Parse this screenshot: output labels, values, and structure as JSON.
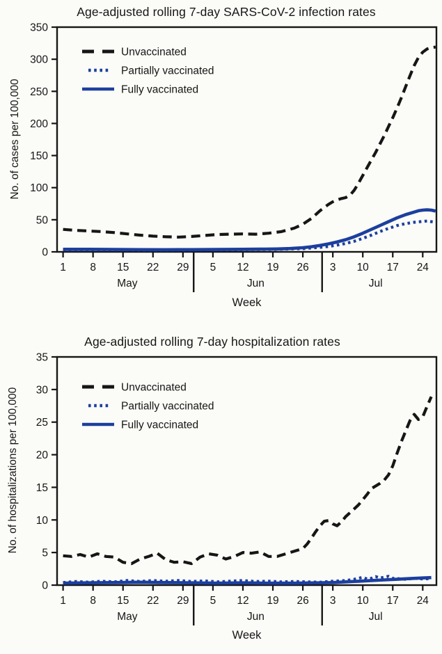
{
  "figure": {
    "background": "#fbfbf7",
    "accent_blue": "#1c3f9e",
    "line_black": "#161616"
  },
  "chart_data": [
    {
      "type": "line",
      "title": "Age-adjusted rolling 7-day SARS-CoV-2 infection rates",
      "xlabel": "Week",
      "ylabel": "No. of cases per 100,000",
      "ylim": [
        0,
        350
      ],
      "yticks": [
        0,
        50,
        100,
        150,
        200,
        250,
        300,
        350
      ],
      "grid": false,
      "legend_position": "upper-left-inside",
      "x_unit": "days since May 1",
      "xticks": {
        "days": [
          0,
          7,
          14,
          21,
          28,
          35,
          42,
          49,
          56,
          63,
          70,
          77,
          84
        ],
        "labels": [
          "1",
          "8",
          "15",
          "22",
          "29",
          "5",
          "12",
          "19",
          "26",
          "3",
          "10",
          "17",
          "24"
        ]
      },
      "months": [
        {
          "label": "May",
          "center_day": 15
        },
        {
          "label": "Jun",
          "center_day": 45
        },
        {
          "label": "Jul",
          "center_day": 73
        }
      ],
      "month_separator_days": [
        30.5,
        60.5
      ],
      "series": [
        {
          "name": "Unvaccinated",
          "style": "dashed",
          "color": "#161616",
          "points": [
            [
              0,
              35
            ],
            [
              3,
              33.5
            ],
            [
              6,
              32.5
            ],
            [
              9,
              31.5
            ],
            [
              12,
              30
            ],
            [
              15,
              28
            ],
            [
              18,
              26
            ],
            [
              21,
              24.5
            ],
            [
              24,
              23.5
            ],
            [
              27,
              23
            ],
            [
              30,
              24
            ],
            [
              33,
              25.5
            ],
            [
              36,
              27
            ],
            [
              39,
              27.5
            ],
            [
              42,
              28
            ],
            [
              45,
              27.5
            ],
            [
              48,
              29
            ],
            [
              51,
              31.5
            ],
            [
              54,
              37
            ],
            [
              56,
              43
            ],
            [
              58,
              52
            ],
            [
              60,
              64
            ],
            [
              62,
              74
            ],
            [
              63,
              78
            ],
            [
              64,
              81
            ],
            [
              65,
              83
            ],
            [
              66,
              84.5
            ],
            [
              67,
              88
            ],
            [
              68,
              96
            ],
            [
              69,
              107
            ],
            [
              70,
              119
            ],
            [
              71,
              131
            ],
            [
              72,
              143
            ],
            [
              73,
              155
            ],
            [
              74,
              168
            ],
            [
              75,
              181
            ],
            [
              76,
              195
            ],
            [
              77,
              209
            ],
            [
              78,
              224
            ],
            [
              79,
              240
            ],
            [
              80,
              257
            ],
            [
              81,
              274
            ],
            [
              82,
              290
            ],
            [
              83,
              303
            ],
            [
              84,
              311
            ],
            [
              85,
              316
            ],
            [
              86,
              318
            ],
            [
              87,
              319
            ]
          ]
        },
        {
          "name": "Partially vaccinated",
          "style": "dotted",
          "color": "#1c3f9e",
          "points": [
            [
              0,
              3
            ],
            [
              6,
              3
            ],
            [
              12,
              3
            ],
            [
              18,
              2.8
            ],
            [
              24,
              2.8
            ],
            [
              30,
              3
            ],
            [
              36,
              3.2
            ],
            [
              42,
              3.5
            ],
            [
              46,
              3.7
            ],
            [
              50,
              4
            ],
            [
              53,
              4.5
            ],
            [
              56,
              5
            ],
            [
              58,
              6
            ],
            [
              60,
              7
            ],
            [
              62,
              8.5
            ],
            [
              64,
              10.5
            ],
            [
              66,
              13
            ],
            [
              68,
              16.5
            ],
            [
              70,
              21
            ],
            [
              72,
              26
            ],
            [
              74,
              31.5
            ],
            [
              76,
              36.5
            ],
            [
              78,
              41
            ],
            [
              80,
              44
            ],
            [
              82,
              46
            ],
            [
              84,
              47.5
            ],
            [
              85,
              48
            ],
            [
              86,
              47
            ],
            [
              87,
              46
            ]
          ]
        },
        {
          "name": "Fully vaccinated",
          "style": "solid",
          "color": "#1c3f9e",
          "points": [
            [
              0,
              4
            ],
            [
              6,
              4
            ],
            [
              12,
              3.8
            ],
            [
              18,
              3.5
            ],
            [
              24,
              3.4
            ],
            [
              30,
              3.5
            ],
            [
              36,
              3.7
            ],
            [
              42,
              4
            ],
            [
              46,
              4.2
            ],
            [
              50,
              4.6
            ],
            [
              53,
              5.2
            ],
            [
              56,
              6.5
            ],
            [
              58,
              8
            ],
            [
              60,
              10
            ],
            [
              62,
              12.5
            ],
            [
              64,
              15.5
            ],
            [
              66,
              19
            ],
            [
              68,
              23.5
            ],
            [
              70,
              29
            ],
            [
              72,
              35
            ],
            [
              74,
              41
            ],
            [
              76,
              47
            ],
            [
              78,
              53
            ],
            [
              80,
              58
            ],
            [
              82,
              62
            ],
            [
              83,
              64
            ],
            [
              84,
              65
            ],
            [
              85,
              65.5
            ],
            [
              86,
              65
            ],
            [
              87,
              63.5
            ]
          ]
        }
      ]
    },
    {
      "type": "line",
      "title": "Age-adjusted rolling 7-day hospitalization rates",
      "xlabel": "Week",
      "ylabel": "No. of hospitalizations per 100,000",
      "ylim": [
        0,
        35
      ],
      "yticks": [
        0,
        5,
        10,
        15,
        20,
        25,
        30,
        35
      ],
      "grid": false,
      "legend_position": "upper-left-inside",
      "x_unit": "days since May 1",
      "xticks": {
        "days": [
          0,
          7,
          14,
          21,
          28,
          35,
          42,
          49,
          56,
          63,
          70,
          77,
          84
        ],
        "labels": [
          "1",
          "8",
          "15",
          "22",
          "29",
          "5",
          "12",
          "19",
          "26",
          "3",
          "10",
          "17",
          "24"
        ]
      },
      "months": [
        {
          "label": "May",
          "center_day": 15
        },
        {
          "label": "Jun",
          "center_day": 45
        },
        {
          "label": "Jul",
          "center_day": 73
        }
      ],
      "month_separator_days": [
        30.5,
        60.5
      ],
      "series": [
        {
          "name": "Unvaccinated",
          "style": "dashed",
          "color": "#161616",
          "points": [
            [
              0,
              4.5
            ],
            [
              2,
              4.4
            ],
            [
              4,
              4.7
            ],
            [
              6,
              4.3
            ],
            [
              8,
              4.8
            ],
            [
              10,
              4.4
            ],
            [
              12,
              4.3
            ],
            [
              14,
              3.5
            ],
            [
              16,
              3.3
            ],
            [
              18,
              4.0
            ],
            [
              20,
              4.4
            ],
            [
              22,
              4.9
            ],
            [
              24,
              3.9
            ],
            [
              26,
              3.5
            ],
            [
              28,
              3.6
            ],
            [
              30,
              3.3
            ],
            [
              32,
              4.3
            ],
            [
              34,
              4.8
            ],
            [
              36,
              4.6
            ],
            [
              38,
              4.0
            ],
            [
              40,
              4.4
            ],
            [
              42,
              5.0
            ],
            [
              44,
              4.9
            ],
            [
              46,
              5.1
            ],
            [
              48,
              4.4
            ],
            [
              50,
              4.4
            ],
            [
              52,
              4.8
            ],
            [
              54,
              5.2
            ],
            [
              56,
              5.6
            ],
            [
              57,
              6.3
            ],
            [
              58,
              7.2
            ],
            [
              59,
              8.2
            ],
            [
              60,
              9.1
            ],
            [
              61,
              9.8
            ],
            [
              62,
              9.9
            ],
            [
              63,
              9.4
            ],
            [
              64,
              9.1
            ],
            [
              65,
              9.7
            ],
            [
              66,
              10.5
            ],
            [
              67,
              11.1
            ],
            [
              68,
              11.7
            ],
            [
              69,
              12.3
            ],
            [
              70,
              13.1
            ],
            [
              71,
              13.9
            ],
            [
              72,
              14.8
            ],
            [
              73,
              15.2
            ],
            [
              74,
              15.6
            ],
            [
              75,
              16.1
            ],
            [
              76,
              16.9
            ],
            [
              77,
              18.3
            ],
            [
              78,
              20.2
            ],
            [
              79,
              22
            ],
            [
              80,
              23.6
            ],
            [
              81,
              25.2
            ],
            [
              82,
              26.2
            ],
            [
              83,
              25.4
            ],
            [
              84,
              25.8
            ],
            [
              85,
              27.4
            ],
            [
              86,
              28.9
            ]
          ]
        },
        {
          "name": "Partially vaccinated",
          "style": "dotted",
          "color": "#1c3f9e",
          "points": [
            [
              0,
              0.4
            ],
            [
              3,
              0.55
            ],
            [
              6,
              0.45
            ],
            [
              9,
              0.6
            ],
            [
              12,
              0.5
            ],
            [
              15,
              0.7
            ],
            [
              18,
              0.55
            ],
            [
              21,
              0.7
            ],
            [
              24,
              0.6
            ],
            [
              27,
              0.7
            ],
            [
              30,
              0.55
            ],
            [
              33,
              0.65
            ],
            [
              36,
              0.5
            ],
            [
              39,
              0.6
            ],
            [
              42,
              0.7
            ],
            [
              45,
              0.55
            ],
            [
              48,
              0.6
            ],
            [
              51,
              0.5
            ],
            [
              54,
              0.55
            ],
            [
              57,
              0.5
            ],
            [
              60,
              0.45
            ],
            [
              63,
              0.6
            ],
            [
              66,
              0.7
            ],
            [
              68,
              0.9
            ],
            [
              70,
              1.2
            ],
            [
              71,
              0.95
            ],
            [
              72,
              1.05
            ],
            [
              73,
              1.3
            ],
            [
              74,
              1.1
            ],
            [
              75,
              1.2
            ],
            [
              76,
              1.35
            ],
            [
              77,
              1.05
            ],
            [
              78,
              1.0
            ],
            [
              80,
              0.9
            ],
            [
              82,
              1.05
            ],
            [
              84,
              0.95
            ],
            [
              86,
              1.0
            ]
          ]
        },
        {
          "name": "Fully vaccinated",
          "style": "solid",
          "color": "#1c3f9e",
          "points": [
            [
              0,
              0.3
            ],
            [
              6,
              0.35
            ],
            [
              12,
              0.4
            ],
            [
              18,
              0.45
            ],
            [
              24,
              0.4
            ],
            [
              30,
              0.35
            ],
            [
              36,
              0.3
            ],
            [
              42,
              0.35
            ],
            [
              48,
              0.3
            ],
            [
              54,
              0.3
            ],
            [
              60,
              0.35
            ],
            [
              63,
              0.4
            ],
            [
              66,
              0.5
            ],
            [
              69,
              0.6
            ],
            [
              72,
              0.7
            ],
            [
              75,
              0.8
            ],
            [
              78,
              0.9
            ],
            [
              81,
              1.0
            ],
            [
              84,
              1.1
            ],
            [
              86,
              1.15
            ]
          ]
        }
      ]
    }
  ]
}
